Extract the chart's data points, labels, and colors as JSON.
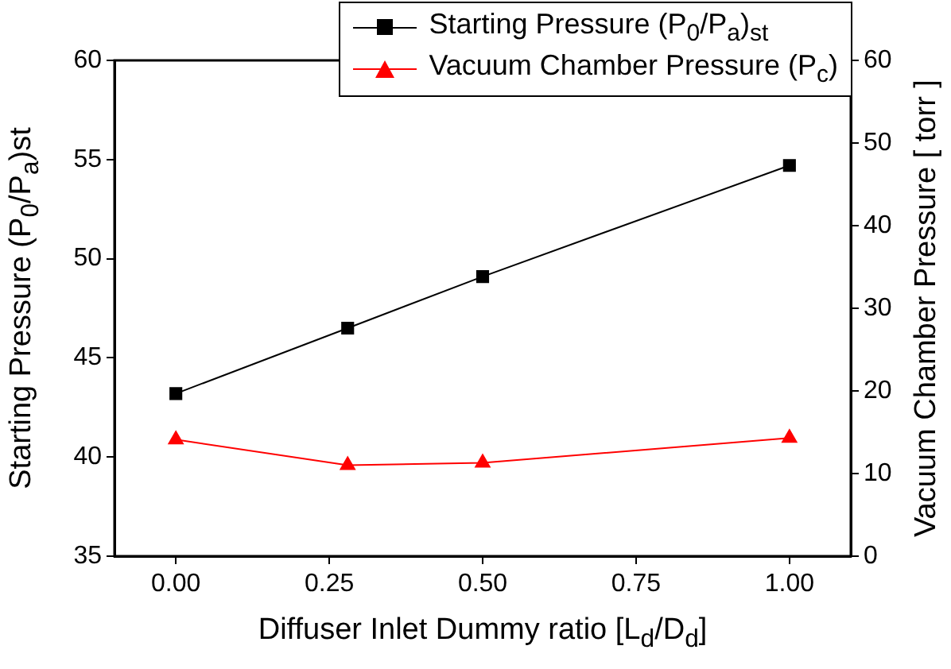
{
  "chart_data": {
    "type": "line",
    "xlabel": "Diffuser Inlet Dummy ratio [L$_{d}$/D$_{d}$]",
    "ylabel": "Starting Pressure (P$_{0}$/P$_{a}$)st",
    "y2label": "Vacuum Chamber Pressure [ torr ]",
    "x": [
      0,
      0.28,
      0.5,
      1.0
    ],
    "series": [
      {
        "name": "Starting Pressure (P$_{0}$/P$_{a}$)$_{st}$",
        "color": "#000000",
        "marker": "square",
        "values": [
          43.2,
          46.5,
          49.1,
          54.7
        ]
      },
      {
        "name": "Vacuum Chamber Pressure (P$_{c}$)",
        "color": "#ff0000",
        "marker": "triangle",
        "axis": "y2",
        "values": [
          14.1,
          11.0,
          11.3,
          14.3
        ]
      }
    ],
    "xlim": [
      -0.1,
      1.1
    ],
    "xticks": [
      {
        "value": 0,
        "label": "0.00"
      },
      {
        "value": 0.25,
        "label": "0.25"
      },
      {
        "value": 0.5,
        "label": "0.50"
      },
      {
        "value": 0.75,
        "label": "0.75"
      },
      {
        "value": 1,
        "label": "1.00"
      }
    ],
    "ylim": [
      35,
      60
    ],
    "yticks": [
      35,
      40,
      45,
      50,
      55,
      60
    ],
    "y2lim": [
      0,
      60
    ],
    "y2ticks": [
      0,
      10,
      20,
      30,
      40,
      50,
      60
    ],
    "legend": "top right"
  }
}
